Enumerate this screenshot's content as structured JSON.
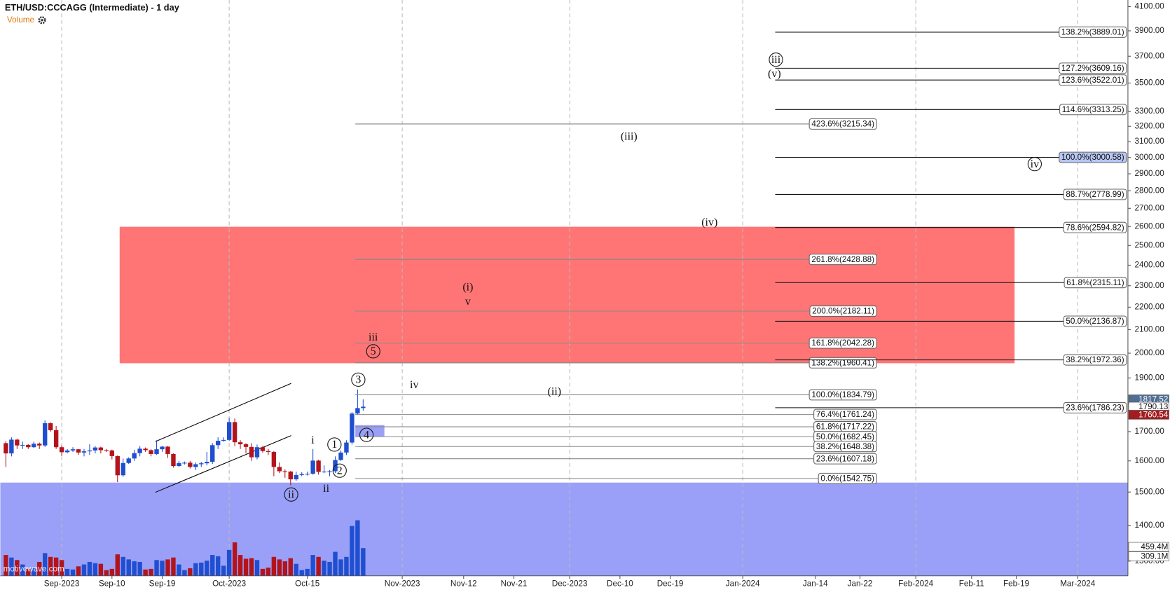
{
  "chart_data": {
    "type": "candlestick",
    "title": "ETH/USD:CCCAGG (Intermediate) - 1 day",
    "volume_label": "Volume",
    "watermark": "motivewave.com",
    "log_scale": true,
    "ylim": [
      1261,
      4157
    ],
    "xlim": [
      "2023-08-21",
      "2024-03-10"
    ],
    "volume_lim": [
      0,
      910
    ],
    "up_color": "#1f4fd0",
    "down_color": "#b3141c",
    "yticks": [
      {
        "value": 4100,
        "label": "4100.00"
      },
      {
        "value": 3900,
        "label": "3900.00"
      },
      {
        "value": 3700,
        "label": "3700.00"
      },
      {
        "value": 3500,
        "label": "3500.00"
      },
      {
        "value": 3300,
        "label": "3300.00"
      },
      {
        "value": 3200,
        "label": "3200.00"
      },
      {
        "value": 3100,
        "label": "3100.00"
      },
      {
        "value": 3000,
        "label": "3000.00"
      },
      {
        "value": 2900,
        "label": "2900.00"
      },
      {
        "value": 2800,
        "label": "2800.00"
      },
      {
        "value": 2700,
        "label": "2700.00"
      },
      {
        "value": 2600,
        "label": "2600.00"
      },
      {
        "value": 2500,
        "label": "2500.00"
      },
      {
        "value": 2400,
        "label": "2400.00"
      },
      {
        "value": 2300,
        "label": "2300.00"
      },
      {
        "value": 2200,
        "label": "2200.00"
      },
      {
        "value": 2100,
        "label": "2100.00"
      },
      {
        "value": 2000,
        "label": "2000.00"
      },
      {
        "value": 1900,
        "label": "1900.00"
      },
      {
        "value": 1800,
        "label": "1800.00"
      },
      {
        "value": 1700,
        "label": "1700.00"
      },
      {
        "value": 1600,
        "label": "1600.00"
      },
      {
        "value": 1500,
        "label": "1500.00"
      },
      {
        "value": 1400,
        "label": "1400.00"
      },
      {
        "value": 1300,
        "label": "1300.00"
      }
    ],
    "xticks": [
      {
        "value": "2023-09-01",
        "label": "Sep-2023"
      },
      {
        "value": "2023-09-10",
        "label": "Sep-10"
      },
      {
        "value": "2023-09-19",
        "label": "Sep-19"
      },
      {
        "value": "2023-10-01",
        "label": "Oct-2023"
      },
      {
        "value": "2023-10-15",
        "label": "Oct-15"
      },
      {
        "value": "2023-11-01",
        "label": "Nov-2023"
      },
      {
        "value": "2023-11-12",
        "label": "Nov-12"
      },
      {
        "value": "2023-11-21",
        "label": "Nov-21"
      },
      {
        "value": "2023-12-01",
        "label": "Dec-2023"
      },
      {
        "value": "2023-12-10",
        "label": "Dec-10"
      },
      {
        "value": "2023-12-19",
        "label": "Dec-19"
      },
      {
        "value": "2024-01-01",
        "label": "Jan-2024"
      },
      {
        "value": "2024-01-14",
        "label": "Jan-14"
      },
      {
        "value": "2024-01-22",
        "label": "Jan-22"
      },
      {
        "value": "2024-02-01",
        "label": "Feb-2024"
      },
      {
        "value": "2024-02-11",
        "label": "Feb-11"
      },
      {
        "value": "2024-02-19",
        "label": "Feb-19"
      },
      {
        "value": "2024-03-01",
        "label": "Mar-2024"
      }
    ],
    "x": [
      "2023-08-22",
      "2023-08-23",
      "2023-08-24",
      "2023-08-25",
      "2023-08-26",
      "2023-08-27",
      "2023-08-28",
      "2023-08-29",
      "2023-08-30",
      "2023-08-31",
      "2023-09-01",
      "2023-09-02",
      "2023-09-03",
      "2023-09-04",
      "2023-09-05",
      "2023-09-06",
      "2023-09-07",
      "2023-09-08",
      "2023-09-09",
      "2023-09-10",
      "2023-09-11",
      "2023-09-12",
      "2023-09-13",
      "2023-09-14",
      "2023-09-15",
      "2023-09-16",
      "2023-09-17",
      "2023-09-18",
      "2023-09-19",
      "2023-09-20",
      "2023-09-21",
      "2023-09-22",
      "2023-09-23",
      "2023-09-24",
      "2023-09-25",
      "2023-09-26",
      "2023-09-27",
      "2023-09-28",
      "2023-09-29",
      "2023-09-30",
      "2023-10-01",
      "2023-10-02",
      "2023-10-03",
      "2023-10-04",
      "2023-10-05",
      "2023-10-06",
      "2023-10-07",
      "2023-10-08",
      "2023-10-09",
      "2023-10-10",
      "2023-10-11",
      "2023-10-12",
      "2023-10-13",
      "2023-10-14",
      "2023-10-15",
      "2023-10-16",
      "2023-10-17",
      "2023-10-18",
      "2023-10-19",
      "2023-10-20",
      "2023-10-21",
      "2023-10-22",
      "2023-10-23",
      "2023-10-24",
      "2023-10-25"
    ],
    "open": [
      1660,
      1625,
      1672,
      1652,
      1654,
      1646,
      1658,
      1652,
      1730,
      1705,
      1646,
      1629,
      1635,
      1639,
      1628,
      1632,
      1635,
      1645,
      1636,
      1635,
      1616,
      1553,
      1593,
      1608,
      1626,
      1641,
      1636,
      1623,
      1639,
      1648,
      1623,
      1583,
      1593,
      1594,
      1580,
      1589,
      1592,
      1597,
      1653,
      1668,
      1671,
      1734,
      1663,
      1656,
      1647,
      1612,
      1646,
      1633,
      1630,
      1580,
      1566,
      1565,
      1540,
      1554,
      1557,
      1558,
      1601,
      1564,
      1565,
      1566,
      1603,
      1628,
      1662,
      1765,
      1785
    ],
    "high": [
      1667,
      1680,
      1675,
      1665,
      1656,
      1665,
      1662,
      1740,
      1733,
      1720,
      1652,
      1640,
      1646,
      1640,
      1640,
      1656,
      1650,
      1648,
      1640,
      1638,
      1618,
      1608,
      1612,
      1637,
      1650,
      1645,
      1640,
      1670,
      1650,
      1650,
      1625,
      1600,
      1598,
      1600,
      1595,
      1597,
      1630,
      1660,
      1680,
      1680,
      1750,
      1747,
      1670,
      1660,
      1660,
      1655,
      1650,
      1640,
      1633,
      1595,
      1572,
      1567,
      1565,
      1563,
      1565,
      1640,
      1604,
      1585,
      1570,
      1615,
      1635,
      1670,
      1770,
      1855,
      1817.52
    ],
    "low": [
      1580,
      1615,
      1640,
      1640,
      1640,
      1644,
      1640,
      1647,
      1700,
      1640,
      1616,
      1626,
      1630,
      1620,
      1615,
      1620,
      1625,
      1625,
      1630,
      1605,
      1531,
      1548,
      1590,
      1600,
      1615,
      1630,
      1615,
      1620,
      1630,
      1610,
      1578,
      1580,
      1588,
      1575,
      1570,
      1580,
      1585,
      1590,
      1640,
      1665,
      1668,
      1650,
      1640,
      1625,
      1600,
      1605,
      1628,
      1620,
      1550,
      1560,
      1545,
      1521,
      1535,
      1550,
      1552,
      1555,
      1555,
      1560,
      1550,
      1560,
      1600,
      1620,
      1655,
      1760,
      1775
    ],
    "close": [
      1625,
      1672,
      1652,
      1654,
      1646,
      1658,
      1652,
      1730,
      1705,
      1646,
      1629,
      1635,
      1639,
      1628,
      1632,
      1635,
      1645,
      1636,
      1635,
      1616,
      1553,
      1593,
      1608,
      1626,
      1641,
      1636,
      1623,
      1639,
      1648,
      1623,
      1583,
      1593,
      1594,
      1580,
      1589,
      1592,
      1597,
      1653,
      1668,
      1671,
      1734,
      1663,
      1656,
      1647,
      1612,
      1646,
      1633,
      1630,
      1580,
      1566,
      1565,
      1540,
      1554,
      1557,
      1558,
      1601,
      1564,
      1565,
      1566,
      1603,
      1628,
      1662,
      1765,
      1785,
      1790.13
    ],
    "volume": [
      330,
      290,
      250,
      180,
      110,
      120,
      220,
      360,
      300,
      290,
      250,
      110,
      100,
      150,
      180,
      220,
      200,
      190,
      90,
      110,
      340,
      300,
      260,
      230,
      220,
      100,
      110,
      250,
      240,
      260,
      290,
      180,
      90,
      120,
      200,
      210,
      240,
      330,
      310,
      160,
      410,
      530,
      330,
      270,
      280,
      250,
      110,
      130,
      300,
      260,
      230,
      280,
      190,
      90,
      110,
      330,
      300,
      240,
      220,
      380,
      260,
      300,
      790,
      880,
      440
    ],
    "left_fibs": [
      {
        "label": "423.6%(3215.34)",
        "value": 3215.34
      },
      {
        "label": "261.8%(2428.88)",
        "value": 2428.88
      },
      {
        "label": "200.0%(2182.11)",
        "value": 2182.11
      },
      {
        "label": "161.8%(2042.28)",
        "value": 2042.28
      },
      {
        "label": "138.2%(1960.41)",
        "value": 1960.41
      },
      {
        "label": "100.0%(1834.79)",
        "value": 1834.79
      },
      {
        "label": "76.4%(1761.24)",
        "value": 1761.24
      },
      {
        "label": "61.8%(1717.22)",
        "value": 1717.22
      },
      {
        "label": "50.0%(1682.45)",
        "value": 1682.45
      },
      {
        "label": "38.2%(1648.38)",
        "value": 1648.38
      },
      {
        "label": "23.6%(1607.18)",
        "value": 1607.18
      },
      {
        "label": "0.0%(1542.75)",
        "value": 1542.75
      }
    ],
    "right_fibs": [
      {
        "label": "138.2%(3889.01)",
        "value": 3889.01
      },
      {
        "label": "127.2%(3609.16)",
        "value": 3609.16
      },
      {
        "label": "123.6%(3522.01)",
        "value": 3522.01
      },
      {
        "label": "114.6%(3313.25)",
        "value": 3313.25
      },
      {
        "label": "100.0%(3000.58)",
        "value": 3000.58
      },
      {
        "label": "88.7%(2778.99)",
        "value": 2778.99
      },
      {
        "label": "78.6%(2594.82)",
        "value": 2594.82
      },
      {
        "label": "61.8%(2315.11)",
        "value": 2315.11
      },
      {
        "label": "50.0%(2136.87)",
        "value": 2136.87
      },
      {
        "label": "38.2%(1972.36)",
        "value": 1972.36
      },
      {
        "label": "23.6%(1786.23)",
        "value": 1786.23
      }
    ],
    "price_tags": [
      1817.52,
      1790.13,
      1760.54
    ],
    "volume_tags": [
      {
        "value": 459.4,
        "label": "459.4M"
      },
      {
        "value": 309.1,
        "label": "309.1M"
      }
    ],
    "wave_labels": [
      "ii",
      "ii",
      "i",
      "1",
      "2",
      "3",
      "4",
      "5",
      "iii",
      "iv",
      "(i)",
      "v",
      "(ii)",
      "(iii)",
      "(iv)",
      "iii",
      "(v)",
      "iv"
    ]
  }
}
